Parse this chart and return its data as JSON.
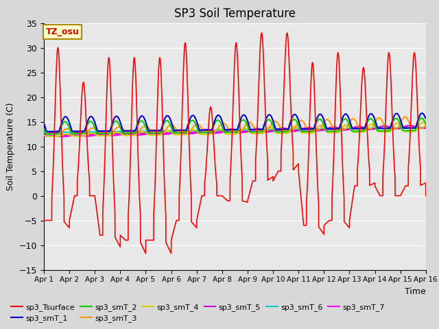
{
  "title": "SP3 Soil Temperature",
  "ylabel": "Soil Temperature (C)",
  "xlabel": "Time",
  "xlim": [
    0,
    15
  ],
  "ylim": [
    -15,
    35
  ],
  "yticks": [
    -15,
    -10,
    -5,
    0,
    5,
    10,
    15,
    20,
    25,
    30,
    35
  ],
  "xtick_labels": [
    "Apr 1",
    "Apr 2",
    "Apr 3",
    "Apr 4",
    "Apr 5",
    "Apr 6",
    "Apr 7",
    "Apr 8",
    "Apr 9",
    "Apr 10",
    "Apr 11",
    "Apr 12",
    "Apr 13",
    "Apr 14",
    "Apr 15",
    "Apr 16"
  ],
  "xtick_positions": [
    0,
    1,
    2,
    3,
    4,
    5,
    6,
    7,
    8,
    9,
    10,
    11,
    12,
    13,
    14,
    15
  ],
  "plot_bg_color": "#e8e8e8",
  "fig_bg_color": "#d8d8d8",
  "grid_color": "#ffffff",
  "annotation_text": "TZ_osu",
  "annotation_bg": "#ffffcc",
  "annotation_border": "#aa8800",
  "series_colors": {
    "sp3_Tsurface": "#ff0000",
    "sp3_smT_1": "#0000cc",
    "sp3_smT_2": "#00cc00",
    "sp3_smT_3": "#ff9900",
    "sp3_smT_4": "#cccc00",
    "sp3_smT_5": "#cc00cc",
    "sp3_smT_6": "#00cccc",
    "sp3_smT_7": "#ff00ff"
  }
}
